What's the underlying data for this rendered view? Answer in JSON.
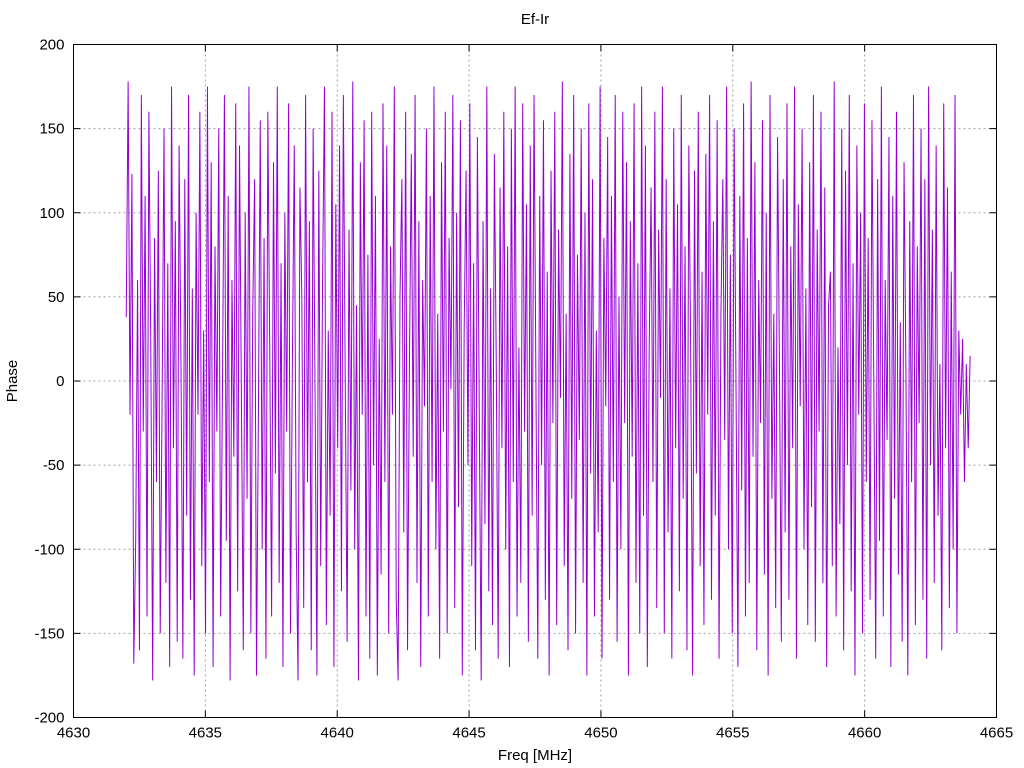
{
  "chart_data": {
    "type": "line",
    "title": "Ef-Ir",
    "xlabel": "Freq [MHz]",
    "ylabel": "Phase",
    "xlim": [
      4630,
      4665
    ],
    "ylim": [
      -200,
      200
    ],
    "xticks": [
      4630,
      4635,
      4640,
      4645,
      4650,
      4655,
      4660,
      4665
    ],
    "yticks": [
      -200,
      -150,
      -100,
      -50,
      0,
      50,
      100,
      150,
      200
    ],
    "grid": true,
    "legend": "none",
    "series": [
      {
        "color": "#9400d3",
        "x_start": 4632.0,
        "x_end": 4664.0,
        "values": [
          38,
          178,
          -20,
          123,
          -168,
          -95,
          60,
          -160,
          170,
          -30,
          110,
          -140,
          160,
          20,
          -178,
          85,
          -60,
          125,
          -150,
          -10,
          150,
          -120,
          70,
          -170,
          175,
          -40,
          95,
          -155,
          140,
          10,
          -165,
          120,
          -80,
          170,
          -130,
          55,
          -175,
          100,
          -20,
          160,
          -110,
          30,
          -150,
          175,
          -60,
          130,
          -170,
          80,
          -30,
          150,
          -140,
          0,
          170,
          -95,
          110,
          -178,
          60,
          -45,
          165,
          -125,
          140,
          -10,
          -160,
          100,
          -70,
          175,
          -150,
          40,
          120,
          -175,
          -20,
          155,
          -100,
          85,
          -165,
          160,
          20,
          -140,
          130,
          -55,
          175,
          -120,
          70,
          -170,
          100,
          -30,
          165,
          -150,
          10,
          140,
          -90,
          -178,
          115,
          50,
          -135,
          170,
          -60,
          95,
          -160,
          150,
          -5,
          -175,
          125,
          -110,
          60,
          175,
          -145,
          30,
          -80,
          160,
          -170,
          105,
          -40,
          140,
          -125,
          170,
          0,
          -155,
          90,
          -65,
          178,
          -100,
          45,
          -178,
          130,
          -20,
          155,
          -140,
          75,
          -165,
          160,
          -50,
          110,
          -175,
          25,
          -115,
          165,
          -60,
          140,
          -150,
          80,
          -20,
          175,
          -130,
          -178,
          50,
          120,
          -90,
          160,
          -160,
          10,
          135,
          -45,
          170,
          -120,
          95,
          -170,
          60,
          -15,
          150,
          -140,
          110,
          -60,
          175,
          -100,
          40,
          -165,
          130,
          -30,
          160,
          -150,
          85,
          -5,
          170,
          -135,
          100,
          -75,
          155,
          -175,
          30,
          125,
          -50,
          165,
          -110,
          70,
          -160,
          145,
          -20,
          -178,
          95,
          -85,
          175,
          -125,
          55,
          -145,
          135,
          10,
          -165,
          115,
          -40,
          160,
          -100,
          80,
          -170,
          150,
          -60,
          175,
          -140,
          20,
          -120,
          165,
          -30,
          105,
          -155,
          140,
          -80,
          170,
          0,
          -165,
          110,
          -50,
          155,
          -130,
          65,
          -175,
          125,
          -25,
          160,
          -145,
          90,
          -10,
          178,
          -110,
          40,
          -160,
          135,
          -70,
          170,
          -150,
          75,
          -35,
          150,
          -120,
          100,
          -175,
          165,
          -55,
          120,
          -140,
          30,
          -90,
          175,
          -165,
          85,
          -15,
          145,
          -130,
          110,
          -60,
          170,
          -155,
          50,
          -100,
          160,
          -25,
          130,
          -175,
          95,
          -45,
          165,
          -120,
          70,
          -150,
          175,
          -80,
          140,
          -170,
          20,
          115,
          -60,
          160,
          -135,
          90,
          -10,
          175,
          -150,
          120,
          -90,
          55,
          -165,
          150,
          -40,
          105,
          -125,
          170,
          -70,
          80,
          -160,
          140,
          15,
          -175,
          125,
          -55,
          160,
          -110,
          65,
          -145,
          135,
          -20,
          170,
          -130,
          95,
          -80,
          155,
          -165,
          40,
          120,
          -35,
          175,
          -100,
          75,
          -150,
          150,
          -5,
          -170,
          110,
          -65,
          165,
          -140,
          85,
          -120,
          178,
          -45,
          130,
          -160,
          60,
          -25,
          155,
          -115,
          100,
          -175,
          170,
          -70,
          40,
          -135,
          145,
          10,
          -155,
          120,
          -90,
          165,
          -130,
          80,
          -40,
          175,
          -165,
          105,
          -15,
          150,
          -100,
          55,
          -145,
          130,
          -75,
          170,
          -155,
          90,
          -30,
          160,
          -120,
          115,
          -170,
          45,
          65,
          -110,
          178,
          -140,
          20,
          -85,
          150,
          -160,
          125,
          -50,
          170,
          -125,
          70,
          -175,
          140,
          -20,
          100,
          -150,
          165,
          -60,
          85,
          -130,
          155,
          -5,
          -165,
          120,
          -95,
          175,
          -140,
          60,
          -35,
          145,
          -170,
          110,
          -70,
          160,
          -115,
          35,
          -155,
          130,
          5,
          -175,
          95,
          -60,
          170,
          -145,
          80,
          -25,
          150,
          -130,
          120,
          -165,
          175,
          -50,
          90,
          -120,
          140,
          -80,
          10,
          -160,
          165,
          -40,
          115,
          -135,
          65,
          -100,
          170,
          -150,
          30,
          -20,
          25,
          -60,
          10,
          -40,
          15
        ]
      }
    ]
  }
}
